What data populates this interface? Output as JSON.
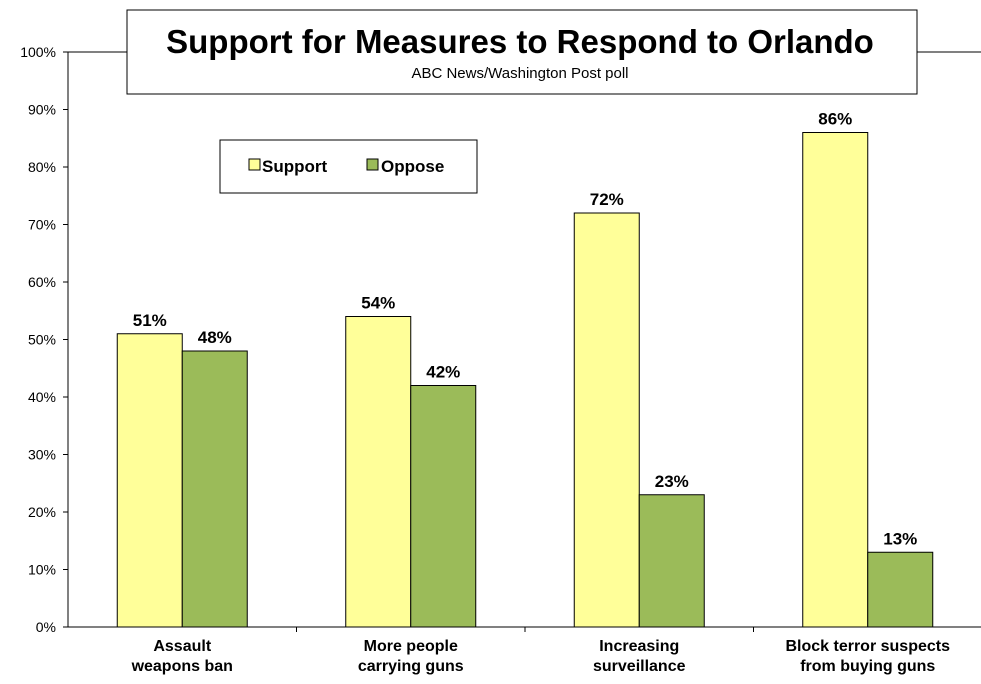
{
  "chart_data": {
    "type": "bar",
    "title": "Support for Measures to Respond to Orlando",
    "subtitle": "ABC News/Washington  Post poll",
    "categories": [
      [
        "Assault",
        "weapons ban"
      ],
      [
        "More people",
        "carrying guns"
      ],
      [
        "Increasing",
        "surveillance"
      ],
      [
        "Block terror suspects",
        "from buying guns"
      ]
    ],
    "series": [
      {
        "name": "Support",
        "values": [
          51,
          54,
          72,
          86
        ],
        "color": "#ffff99"
      },
      {
        "name": "Oppose",
        "values": [
          48,
          42,
          23,
          13
        ],
        "color": "#9bbb59"
      }
    ],
    "data_labels": [
      [
        "51%",
        "54%",
        "72%",
        "86%"
      ],
      [
        "48%",
        "42%",
        "23%",
        "13%"
      ]
    ],
    "yticks": [
      "0%",
      "10%",
      "20%",
      "30%",
      "40%",
      "50%",
      "60%",
      "70%",
      "80%",
      "90%",
      "100%"
    ],
    "ylim": [
      0,
      100
    ],
    "grid": false,
    "legend_position": "top-left"
  }
}
